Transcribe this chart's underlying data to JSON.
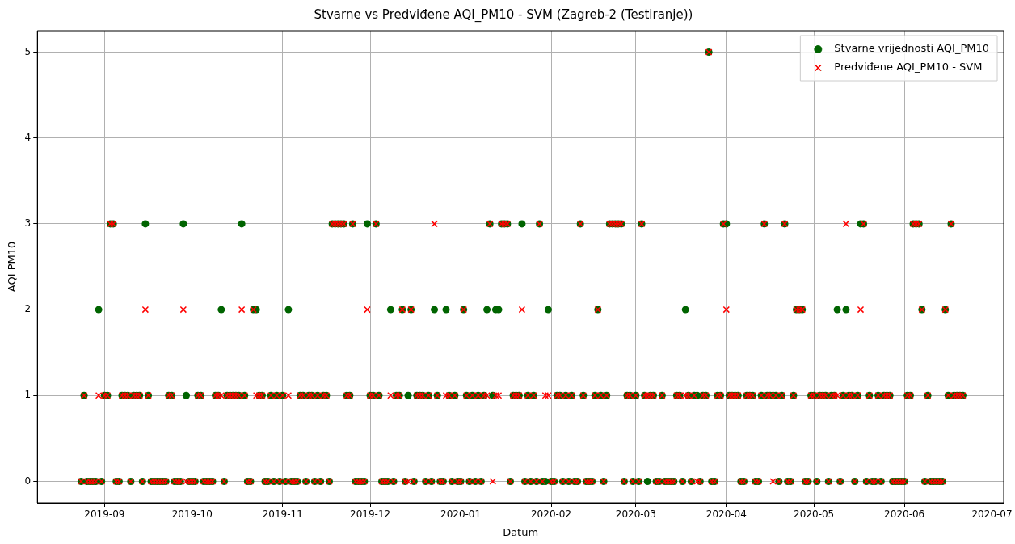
{
  "chart_data": {
    "type": "scatter",
    "title": "Stvarne vs Predviđene AQI_PM10 - SVM (Zagreb-2 (Testiranje))",
    "xlabel": "Datum",
    "ylabel": "AQI PM10",
    "x": [
      "2019-08-24",
      "2019-08-25",
      "2019-08-26",
      "2019-08-27",
      "2019-08-28",
      "2019-08-29",
      "2019-08-30",
      "2019-08-31",
      "2019-09-01",
      "2019-09-02",
      "2019-09-03",
      "2019-09-04",
      "2019-09-05",
      "2019-09-06",
      "2019-09-07",
      "2019-09-08",
      "2019-09-09",
      "2019-09-10",
      "2019-09-11",
      "2019-09-12",
      "2019-09-13",
      "2019-09-14",
      "2019-09-15",
      "2019-09-16",
      "2019-09-17",
      "2019-09-18",
      "2019-09-19",
      "2019-09-20",
      "2019-09-21",
      "2019-09-22",
      "2019-09-23",
      "2019-09-24",
      "2019-09-25",
      "2019-09-26",
      "2019-09-27",
      "2019-09-28",
      "2019-09-29",
      "2019-09-30",
      "2019-10-01",
      "2019-10-02",
      "2019-10-03",
      "2019-10-04",
      "2019-10-05",
      "2019-10-06",
      "2019-10-07",
      "2019-10-08",
      "2019-10-09",
      "2019-10-10",
      "2019-10-11",
      "2019-10-12",
      "2019-10-13",
      "2019-10-14",
      "2019-10-15",
      "2019-10-16",
      "2019-10-17",
      "2019-10-18",
      "2019-10-19",
      "2019-10-20",
      "2019-10-21",
      "2019-10-22",
      "2019-10-23",
      "2019-10-24",
      "2019-10-25",
      "2019-10-26",
      "2019-10-27",
      "2019-10-28",
      "2019-10-29",
      "2019-10-30",
      "2019-10-31",
      "2019-11-01",
      "2019-11-02",
      "2019-11-03",
      "2019-11-04",
      "2019-11-05",
      "2019-11-06",
      "2019-11-07",
      "2019-11-08",
      "2019-11-09",
      "2019-11-10",
      "2019-11-11",
      "2019-11-12",
      "2019-11-13",
      "2019-11-14",
      "2019-11-15",
      "2019-11-16",
      "2019-11-17",
      "2019-11-18",
      "2019-11-19",
      "2019-11-20",
      "2019-11-21",
      "2019-11-22",
      "2019-11-23",
      "2019-11-24",
      "2019-11-25",
      "2019-11-26",
      "2019-11-27",
      "2019-11-28",
      "2019-11-29",
      "2019-11-30",
      "2019-12-01",
      "2019-12-02",
      "2019-12-03",
      "2019-12-04",
      "2019-12-05",
      "2019-12-06",
      "2019-12-07",
      "2019-12-08",
      "2019-12-09",
      "2019-12-10",
      "2019-12-11",
      "2019-12-12",
      "2019-12-13",
      "2019-12-14",
      "2019-12-15",
      "2019-12-16",
      "2019-12-17",
      "2019-12-18",
      "2019-12-19",
      "2019-12-20",
      "2019-12-21",
      "2019-12-22",
      "2019-12-23",
      "2019-12-24",
      "2019-12-25",
      "2019-12-26",
      "2019-12-27",
      "2019-12-28",
      "2019-12-29",
      "2019-12-30",
      "2019-12-31",
      "2020-01-01",
      "2020-01-02",
      "2020-01-03",
      "2020-01-04",
      "2020-01-05",
      "2020-01-06",
      "2020-01-07",
      "2020-01-08",
      "2020-01-09",
      "2020-01-10",
      "2020-01-11",
      "2020-01-12",
      "2020-01-13",
      "2020-01-14",
      "2020-01-15",
      "2020-01-16",
      "2020-01-17",
      "2020-01-18",
      "2020-01-19",
      "2020-01-20",
      "2020-01-21",
      "2020-01-22",
      "2020-01-23",
      "2020-01-24",
      "2020-01-25",
      "2020-01-26",
      "2020-01-27",
      "2020-01-28",
      "2020-01-29",
      "2020-01-30",
      "2020-01-31",
      "2020-02-01",
      "2020-02-02",
      "2020-02-03",
      "2020-02-04",
      "2020-02-05",
      "2020-02-06",
      "2020-02-07",
      "2020-02-08",
      "2020-02-09",
      "2020-02-10",
      "2020-02-11",
      "2020-02-12",
      "2020-02-13",
      "2020-02-14",
      "2020-02-15",
      "2020-02-16",
      "2020-02-17",
      "2020-02-18",
      "2020-02-19",
      "2020-02-20",
      "2020-02-21",
      "2020-02-22",
      "2020-02-23",
      "2020-02-24",
      "2020-02-25",
      "2020-02-26",
      "2020-02-27",
      "2020-02-28",
      "2020-02-29",
      "2020-03-01",
      "2020-03-02",
      "2020-03-03",
      "2020-03-04",
      "2020-03-05",
      "2020-03-06",
      "2020-03-07",
      "2020-03-08",
      "2020-03-09",
      "2020-03-10",
      "2020-03-11",
      "2020-03-12",
      "2020-03-13",
      "2020-03-14",
      "2020-03-15",
      "2020-03-16",
      "2020-03-17",
      "2020-03-18",
      "2020-03-19",
      "2020-03-20",
      "2020-03-21",
      "2020-03-22",
      "2020-03-23",
      "2020-03-24",
      "2020-03-25",
      "2020-03-26",
      "2020-03-27",
      "2020-03-28",
      "2020-03-29",
      "2020-03-30",
      "2020-03-31",
      "2020-04-01",
      "2020-04-02",
      "2020-04-03",
      "2020-04-04",
      "2020-04-05",
      "2020-04-06",
      "2020-04-07",
      "2020-04-08",
      "2020-04-09",
      "2020-04-10",
      "2020-04-11",
      "2020-04-12",
      "2020-04-13",
      "2020-04-14",
      "2020-04-15",
      "2020-04-16",
      "2020-04-17",
      "2020-04-18",
      "2020-04-19",
      "2020-04-20",
      "2020-04-21",
      "2020-04-22",
      "2020-04-23",
      "2020-04-24",
      "2020-04-25",
      "2020-04-26",
      "2020-04-27",
      "2020-04-28",
      "2020-04-29",
      "2020-04-30",
      "2020-05-01",
      "2020-05-02",
      "2020-05-03",
      "2020-05-04",
      "2020-05-05",
      "2020-05-06",
      "2020-05-07",
      "2020-05-08",
      "2020-05-09",
      "2020-05-10",
      "2020-05-11",
      "2020-05-12",
      "2020-05-13",
      "2020-05-14",
      "2020-05-15",
      "2020-05-16",
      "2020-05-17",
      "2020-05-18",
      "2020-05-19",
      "2020-05-20",
      "2020-05-21",
      "2020-05-22",
      "2020-05-23",
      "2020-05-24",
      "2020-05-25",
      "2020-05-26",
      "2020-05-27",
      "2020-05-28",
      "2020-05-29",
      "2020-05-30",
      "2020-05-31",
      "2020-06-01",
      "2020-06-02",
      "2020-06-03",
      "2020-06-04",
      "2020-06-05",
      "2020-06-06",
      "2020-06-07",
      "2020-06-08",
      "2020-06-09",
      "2020-06-10",
      "2020-06-11",
      "2020-06-12",
      "2020-06-13",
      "2020-06-14",
      "2020-06-15",
      "2020-06-16",
      "2020-06-17",
      "2020-06-18",
      "2020-06-19",
      "2020-06-20",
      "2020-06-21"
    ],
    "series": [
      {
        "name": "Stvarne vrijednosti AQI_PM10",
        "color": "#006400",
        "marker": "circle",
        "values": [
          0,
          1,
          0,
          0,
          0,
          0,
          2,
          0,
          1,
          1,
          3,
          3,
          0,
          0,
          1,
          1,
          1,
          0,
          1,
          1,
          1,
          0,
          3,
          1,
          0,
          0,
          0,
          0,
          0,
          0,
          1,
          1,
          0,
          0,
          0,
          3,
          1,
          0,
          0,
          0,
          1,
          1,
          0,
          0,
          0,
          0,
          1,
          1,
          2,
          0,
          1,
          1,
          1,
          1,
          1,
          3,
          1,
          0,
          0,
          2,
          2,
          1,
          1,
          0,
          0,
          1,
          0,
          1,
          0,
          1,
          0,
          2,
          0,
          0,
          0,
          1,
          1,
          0,
          1,
          1,
          0,
          1,
          0,
          1,
          1,
          0,
          3,
          3,
          3,
          3,
          3,
          1,
          1,
          3,
          0,
          0,
          0,
          0,
          3,
          1,
          1,
          3,
          1,
          0,
          0,
          0,
          2,
          0,
          1,
          1,
          2,
          0,
          1,
          2,
          0,
          1,
          1,
          1,
          0,
          1,
          0,
          2,
          1,
          0,
          0,
          2,
          1,
          0,
          1,
          0,
          0,
          2,
          1,
          0,
          1,
          0,
          1,
          0,
          1,
          2,
          3,
          1,
          2,
          2,
          3,
          3,
          3,
          0,
          1,
          1,
          1,
          3,
          0,
          1,
          0,
          1,
          0,
          3,
          0,
          0,
          2,
          0,
          0,
          1,
          1,
          0,
          1,
          0,
          1,
          0,
          0,
          3,
          1,
          0,
          0,
          0,
          1,
          2,
          1,
          0,
          1,
          3,
          3,
          3,
          3,
          3,
          0,
          1,
          1,
          0,
          1,
          0,
          3,
          1,
          0,
          1,
          1,
          0,
          0,
          1,
          0,
          0,
          0,
          0,
          1,
          1,
          0,
          2,
          1,
          0,
          1,
          1,
          0,
          1,
          1,
          5,
          0,
          0,
          1,
          1,
          3,
          3,
          1,
          1,
          1,
          1,
          0,
          0,
          1,
          1,
          1,
          0,
          0,
          1,
          3,
          1,
          1,
          1,
          1,
          0,
          1,
          3,
          0,
          0,
          1,
          2,
          2,
          2,
          0,
          0,
          1,
          1,
          0,
          1,
          1,
          1,
          0,
          1,
          1,
          2,
          0,
          1,
          2,
          1,
          1,
          0,
          1,
          3,
          3,
          0,
          1,
          0,
          0,
          1,
          0,
          1,
          1,
          1,
          0,
          0,
          0,
          0,
          0,
          1,
          1,
          3,
          3,
          3,
          2,
          0,
          1,
          0,
          0,
          0,
          0,
          0,
          2,
          1,
          3,
          1,
          1,
          1,
          1
        ]
      },
      {
        "name": "Predviđene AQI_PM10 - SVM",
        "color": "#ff0000",
        "marker": "cross",
        "values": [
          0,
          1,
          0,
          0,
          0,
          0,
          1,
          0,
          1,
          1,
          3,
          3,
          0,
          0,
          1,
          1,
          1,
          0,
          1,
          1,
          1,
          0,
          2,
          1,
          0,
          0,
          0,
          0,
          0,
          0,
          1,
          1,
          0,
          0,
          0,
          2,
          0,
          0,
          0,
          0,
          1,
          1,
          0,
          0,
          0,
          0,
          1,
          1,
          1,
          0,
          1,
          1,
          1,
          1,
          1,
          2,
          1,
          0,
          0,
          2,
          1,
          1,
          1,
          0,
          0,
          1,
          0,
          1,
          0,
          1,
          0,
          1,
          0,
          0,
          0,
          1,
          1,
          0,
          1,
          1,
          0,
          1,
          0,
          1,
          1,
          0,
          3,
          3,
          3,
          3,
          3,
          1,
          1,
          3,
          0,
          0,
          0,
          0,
          2,
          1,
          1,
          3,
          1,
          0,
          0,
          0,
          1,
          0,
          1,
          1,
          2,
          0,
          0,
          2,
          0,
          1,
          1,
          1,
          0,
          1,
          0,
          3,
          1,
          0,
          0,
          1,
          1,
          0,
          1,
          0,
          0,
          2,
          1,
          0,
          1,
          0,
          1,
          0,
          1,
          1,
          3,
          0,
          1,
          1,
          3,
          3,
          3,
          0,
          1,
          1,
          1,
          2,
          0,
          1,
          0,
          1,
          0,
          3,
          0,
          1,
          1,
          0,
          0,
          1,
          1,
          0,
          1,
          0,
          1,
          0,
          0,
          3,
          1,
          0,
          0,
          0,
          1,
          2,
          1,
          0,
          1,
          3,
          3,
          3,
          3,
          3,
          0,
          1,
          1,
          0,
          1,
          0,
          3,
          1,
          1,
          1,
          1,
          0,
          0,
          1,
          0,
          0,
          0,
          0,
          1,
          1,
          0,
          1,
          1,
          0,
          1,
          0,
          0,
          1,
          1,
          5,
          0,
          0,
          1,
          1,
          3,
          2,
          1,
          1,
          1,
          1,
          0,
          0,
          1,
          1,
          1,
          0,
          0,
          1,
          3,
          1,
          1,
          0,
          1,
          0,
          1,
          3,
          0,
          0,
          1,
          2,
          2,
          2,
          0,
          0,
          1,
          1,
          0,
          1,
          1,
          1,
          0,
          1,
          1,
          1,
          0,
          1,
          3,
          1,
          1,
          0,
          1,
          2,
          3,
          0,
          1,
          0,
          0,
          1,
          0,
          1,
          1,
          1,
          0,
          0,
          0,
          0,
          0,
          1,
          1,
          3,
          3,
          3,
          2,
          0,
          1,
          0,
          0,
          0,
          0,
          0,
          2,
          1,
          3,
          1,
          1,
          1,
          1
        ]
      }
    ],
    "xlim": [
      "2019-08-09",
      "2020-07-05"
    ],
    "xticks": [
      {
        "value": "2019-09-01",
        "label": "2019-09"
      },
      {
        "value": "2019-10-01",
        "label": "2019-10"
      },
      {
        "value": "2019-11-01",
        "label": "2019-11"
      },
      {
        "value": "2019-12-01",
        "label": "2019-12"
      },
      {
        "value": "2020-01-01",
        "label": "2020-01"
      },
      {
        "value": "2020-02-01",
        "label": "2020-02"
      },
      {
        "value": "2020-03-01",
        "label": "2020-03"
      },
      {
        "value": "2020-04-01",
        "label": "2020-04"
      },
      {
        "value": "2020-05-01",
        "label": "2020-05"
      },
      {
        "value": "2020-06-01",
        "label": "2020-06"
      },
      {
        "value": "2020-07-01",
        "label": "2020-07"
      }
    ],
    "ylim": [
      -0.25,
      5.25
    ],
    "yticks": [
      0,
      1,
      2,
      3,
      4,
      5
    ],
    "grid": true,
    "legend": "top right"
  }
}
